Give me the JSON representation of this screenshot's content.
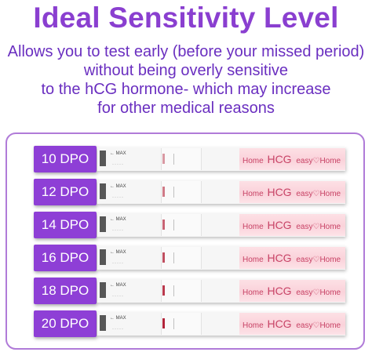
{
  "title": "Ideal Sensitivity Level",
  "subtitle_lines": [
    "Allows you to test early (before your missed period)",
    "without being overly sensitive",
    "to the hCG hormone- which may increase",
    "for other medical reasons"
  ],
  "strip": {
    "max_label": "← MAX",
    "brand_pattern": "Home HCG easy Home HCG easy Home"
  },
  "tests": [
    {
      "label": "10 DPO",
      "line_intensity": 0.45
    },
    {
      "label": "12 DPO",
      "line_intensity": 0.6
    },
    {
      "label": "14 DPO",
      "line_intensity": 0.7
    },
    {
      "label": "16 DPO",
      "line_intensity": 0.8
    },
    {
      "label": "18 DPO",
      "line_intensity": 0.9
    },
    {
      "label": "20 DPO",
      "line_intensity": 1.0
    }
  ],
  "colors": {
    "accent": "#8e3fd6",
    "title": "#8a3fd0",
    "control_line": "#b2243a",
    "strip_pink": "#fad2da"
  }
}
